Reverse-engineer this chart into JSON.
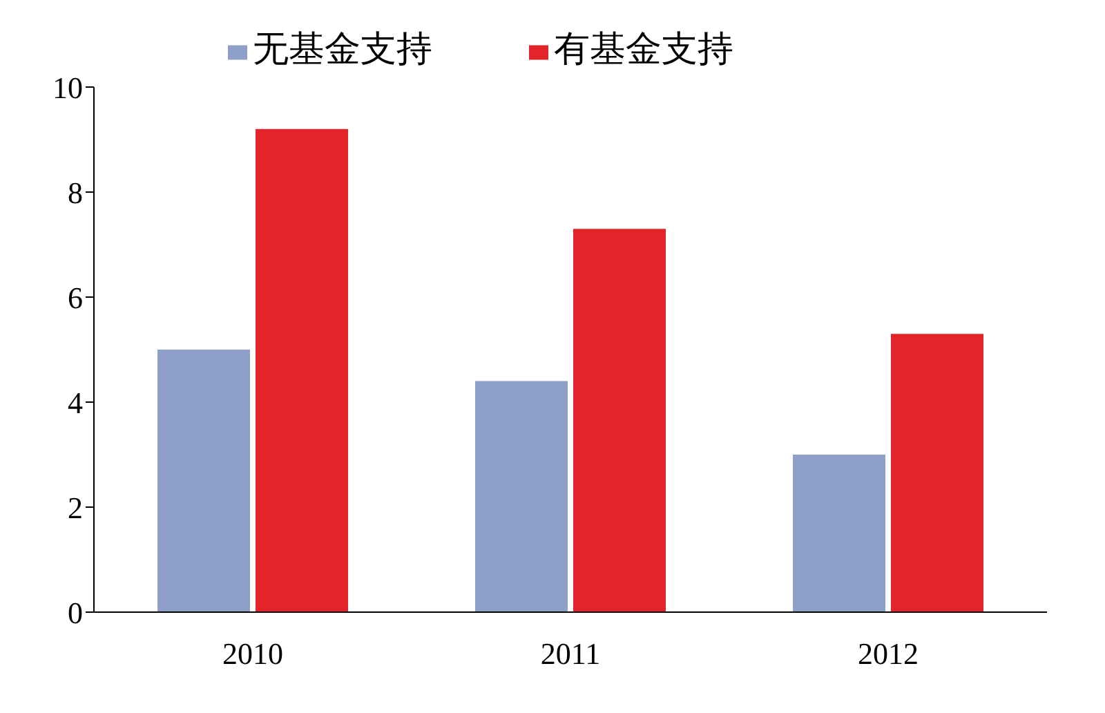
{
  "chart_data": {
    "type": "bar",
    "categories": [
      "2010",
      "2011",
      "2012"
    ],
    "series": [
      {
        "name": "无基金支持",
        "color": "#8fa0c8",
        "values": [
          5.0,
          4.4,
          3.0
        ]
      },
      {
        "name": "有基金支持",
        "color": "#e3242b",
        "values": [
          9.2,
          7.3,
          5.3
        ]
      }
    ],
    "ylim": [
      0,
      10
    ],
    "yticks": [
      0,
      2,
      4,
      6,
      8,
      10
    ],
    "grid": false,
    "legend": "top"
  }
}
